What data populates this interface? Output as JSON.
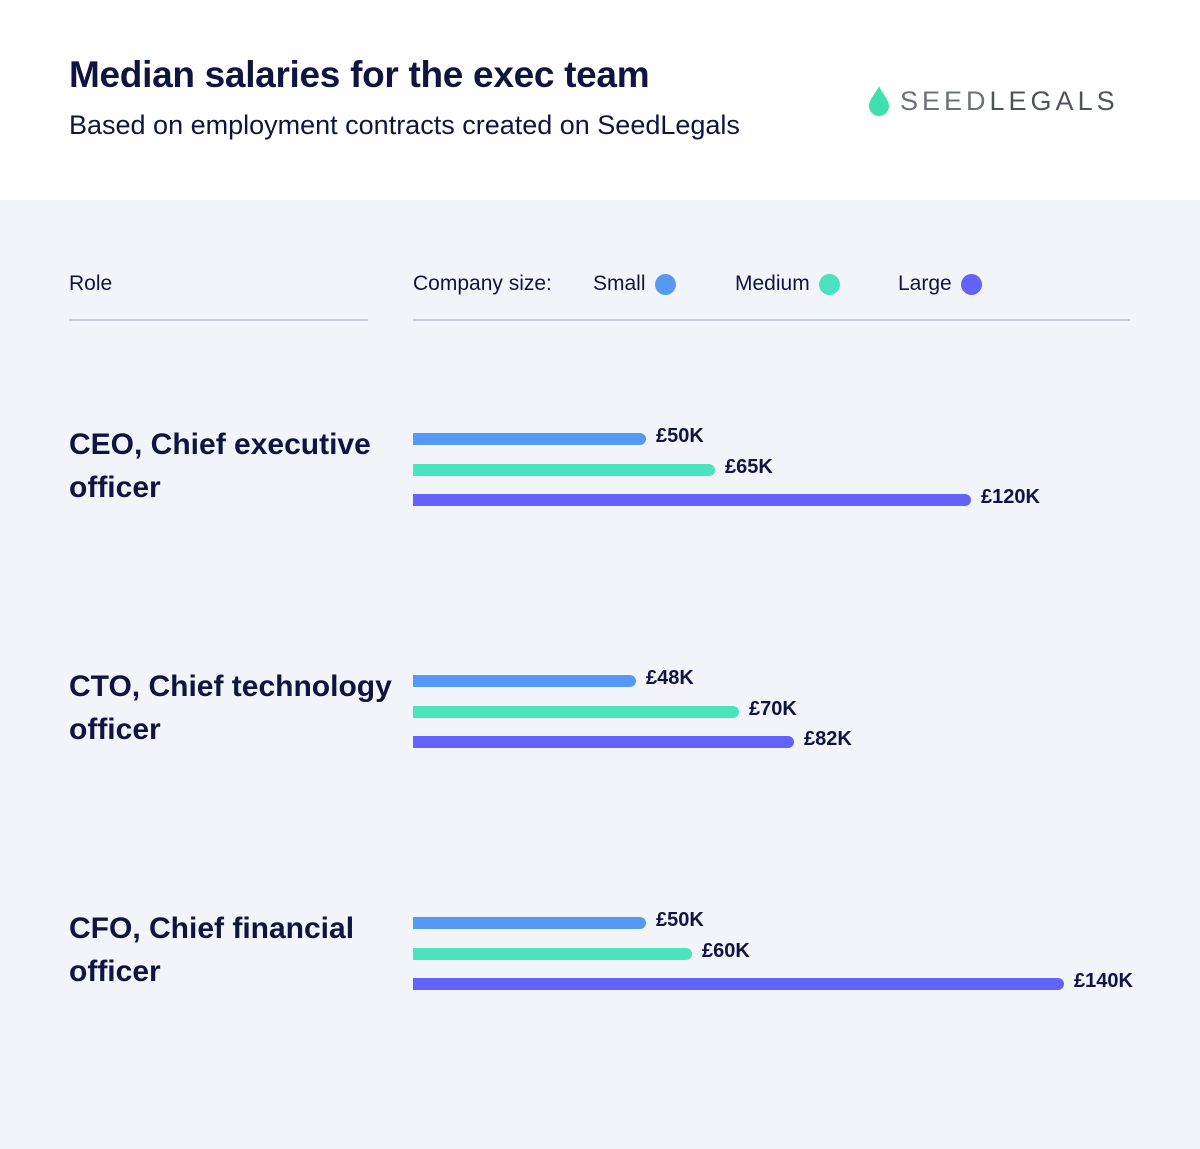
{
  "header": {
    "title": "Median salaries for the exec team",
    "subtitle": "Based on employment contracts created on SeedLegals",
    "logo_part1": "SEED",
    "logo_part2": "LEGALS"
  },
  "columns": {
    "role": "Role",
    "company_size": "Company size:"
  },
  "colors": {
    "small": "#5599f5",
    "medium": "#4be3be",
    "large": "#6363fb",
    "logo": "#3ee0b0"
  },
  "chart_data": {
    "type": "bar",
    "orientation": "horizontal",
    "title": "Median salaries for the exec team",
    "subtitle": "Based on employment contracts created on SeedLegals",
    "unit": "£K",
    "legend_placement": "top",
    "categories": [
      "CEO, Chief executive officer",
      "CTO, Chief technology officer",
      "CFO, Chief financial officer"
    ],
    "series": [
      {
        "name": "Small",
        "values": [
          50,
          48,
          50
        ],
        "labels": [
          "£50K",
          "£48K",
          "£50K"
        ]
      },
      {
        "name": "Medium",
        "values": [
          65,
          70,
          60
        ],
        "labels": [
          "£65K",
          "£70K",
          "£60K"
        ]
      },
      {
        "name": "Large",
        "values": [
          120,
          82,
          140
        ],
        "labels": [
          "£120K",
          "£82K",
          "£140K"
        ]
      }
    ]
  }
}
